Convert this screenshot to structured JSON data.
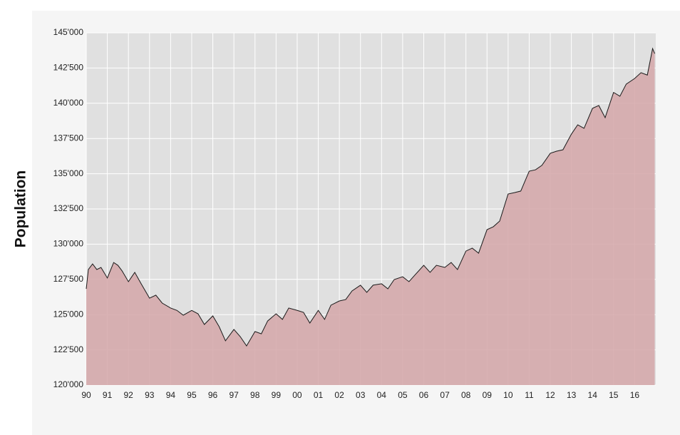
{
  "chart_data": {
    "type": "area",
    "y_label": "Population",
    "color": "#d4a6a8",
    "line_color": "#1a1a1a",
    "grid": true,
    "xlim": [
      1990,
      2017
    ],
    "ylim": [
      120000,
      145000
    ],
    "xticks": [
      {
        "value": 1990,
        "label": "90"
      },
      {
        "value": 1991,
        "label": "91"
      },
      {
        "value": 1992,
        "label": "92"
      },
      {
        "value": 1993,
        "label": "93"
      },
      {
        "value": 1994,
        "label": "94"
      },
      {
        "value": 1995,
        "label": "95"
      },
      {
        "value": 1996,
        "label": "96"
      },
      {
        "value": 1997,
        "label": "97"
      },
      {
        "value": 1998,
        "label": "98"
      },
      {
        "value": 1999,
        "label": "99"
      },
      {
        "value": 2000,
        "label": "00"
      },
      {
        "value": 2001,
        "label": "01"
      },
      {
        "value": 2002,
        "label": "02"
      },
      {
        "value": 2003,
        "label": "03"
      },
      {
        "value": 2004,
        "label": "04"
      },
      {
        "value": 2005,
        "label": "05"
      },
      {
        "value": 2006,
        "label": "06"
      },
      {
        "value": 2007,
        "label": "07"
      },
      {
        "value": 2008,
        "label": "08"
      },
      {
        "value": 2009,
        "label": "09"
      },
      {
        "value": 2010,
        "label": "10"
      },
      {
        "value": 2011,
        "label": "11"
      },
      {
        "value": 2012,
        "label": "12"
      },
      {
        "value": 2013,
        "label": "13"
      },
      {
        "value": 2014,
        "label": "14"
      },
      {
        "value": 2015,
        "label": "15"
      },
      {
        "value": 2016,
        "label": "16"
      }
    ],
    "yticks": [
      {
        "value": 120000,
        "label": "120'000"
      },
      {
        "value": 122500,
        "label": "122'500"
      },
      {
        "value": 125000,
        "label": "125'000"
      },
      {
        "value": 127500,
        "label": "127'500"
      },
      {
        "value": 130000,
        "label": "130'000"
      },
      {
        "value": 132500,
        "label": "132'500"
      },
      {
        "value": 135000,
        "label": "135'000"
      },
      {
        "value": 137500,
        "label": "137'500"
      },
      {
        "value": 140000,
        "label": "140'000"
      },
      {
        "value": 142500,
        "label": "142'500"
      },
      {
        "value": 145000,
        "label": "145'000"
      }
    ],
    "x": [
      1990.0,
      1990.1,
      1990.3,
      1990.5,
      1990.7,
      1991.0,
      1991.3,
      1991.5,
      1991.7,
      1992.0,
      1992.3,
      1992.6,
      1993.0,
      1993.3,
      1993.6,
      1994.0,
      1994.3,
      1994.6,
      1995.0,
      1995.3,
      1995.6,
      1996.0,
      1996.3,
      1996.6,
      1997.0,
      1997.3,
      1997.6,
      1998.0,
      1998.3,
      1998.6,
      1999.0,
      1999.3,
      1999.6,
      2000.0,
      2000.3,
      2000.6,
      2001.0,
      2001.3,
      2001.6,
      2002.0,
      2002.3,
      2002.6,
      2003.0,
      2003.3,
      2003.6,
      2004.0,
      2004.3,
      2004.6,
      2005.0,
      2005.3,
      2005.6,
      2006.0,
      2006.3,
      2006.6,
      2007.0,
      2007.3,
      2007.6,
      2008.0,
      2008.3,
      2008.6,
      2009.0,
      2009.3,
      2009.6,
      2010.0,
      2010.3,
      2010.6,
      2011.0,
      2011.3,
      2011.6,
      2012.0,
      2012.3,
      2012.6,
      2013.0,
      2013.3,
      2013.6,
      2014.0,
      2014.3,
      2014.6,
      2015.0,
      2015.3,
      2015.6,
      2016.0,
      2016.3,
      2016.6,
      2016.85,
      2016.95
    ],
    "values": [
      126830,
      128200,
      128600,
      128200,
      128350,
      127600,
      128700,
      128500,
      128100,
      127340,
      128000,
      127200,
      126170,
      126380,
      125820,
      125470,
      125300,
      124960,
      125300,
      125060,
      124300,
      124910,
      124150,
      123140,
      123950,
      123440,
      122780,
      123800,
      123640,
      124550,
      125060,
      124660,
      125470,
      125300,
      125160,
      124400,
      125300,
      124660,
      125670,
      125970,
      126070,
      126680,
      127090,
      126580,
      127090,
      127190,
      126830,
      127490,
      127690,
      127340,
      127840,
      128500,
      128000,
      128500,
      128350,
      128700,
      128200,
      129510,
      129720,
      129360,
      131030,
      131240,
      131640,
      133560,
      133660,
      133770,
      135180,
      135280,
      135590,
      136450,
      136600,
      136700,
      137810,
      138470,
      138220,
      139640,
      139840,
      138980,
      140770,
      140500,
      141360,
      141760,
      142170,
      142000,
      143880,
      143520
    ]
  }
}
